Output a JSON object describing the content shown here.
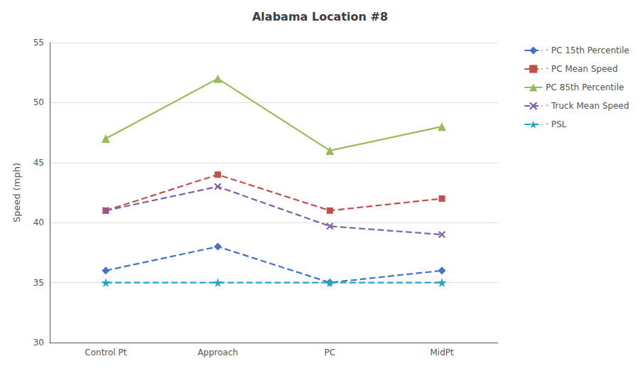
{
  "chart_data": {
    "type": "line",
    "title": "Alabama Location #8",
    "ylabel": "Speed (mph)",
    "categories": [
      "Control Pt",
      "Approach",
      "PC",
      "MidPt"
    ],
    "series": [
      {
        "name": "· PC 15th Percentile",
        "color": "#4472C4",
        "marker": "diamond",
        "line_style": "dashed",
        "values": [
          36.0,
          38.0,
          35.0,
          36.0
        ]
      },
      {
        "name": "· PC Mean Speed",
        "color": "#C0504D",
        "marker": "square",
        "line_style": "dashed",
        "values": [
          41.0,
          44.0,
          41.0,
          42.0
        ]
      },
      {
        "name": "PC 85th Percentile",
        "color": "#9BBB59",
        "marker": "triangle",
        "line_style": "solid",
        "values": [
          47.0,
          52.0,
          46.0,
          48.0
        ]
      },
      {
        "name": "· Truck Mean Speed",
        "color": "#7B61A8",
        "marker": "x",
        "line_style": "dashed",
        "values": [
          41.0,
          43.0,
          39.7,
          39.0
        ]
      },
      {
        "name": "· PSL",
        "color": "#23A5C5",
        "marker": "star",
        "line_style": "dashed",
        "values": [
          35.0,
          35.0,
          35.0,
          35.0
        ]
      }
    ],
    "ylim": [
      30,
      55
    ],
    "yticks": [
      30,
      35,
      40,
      45,
      50,
      55
    ],
    "grid": true,
    "legend": "right"
  }
}
